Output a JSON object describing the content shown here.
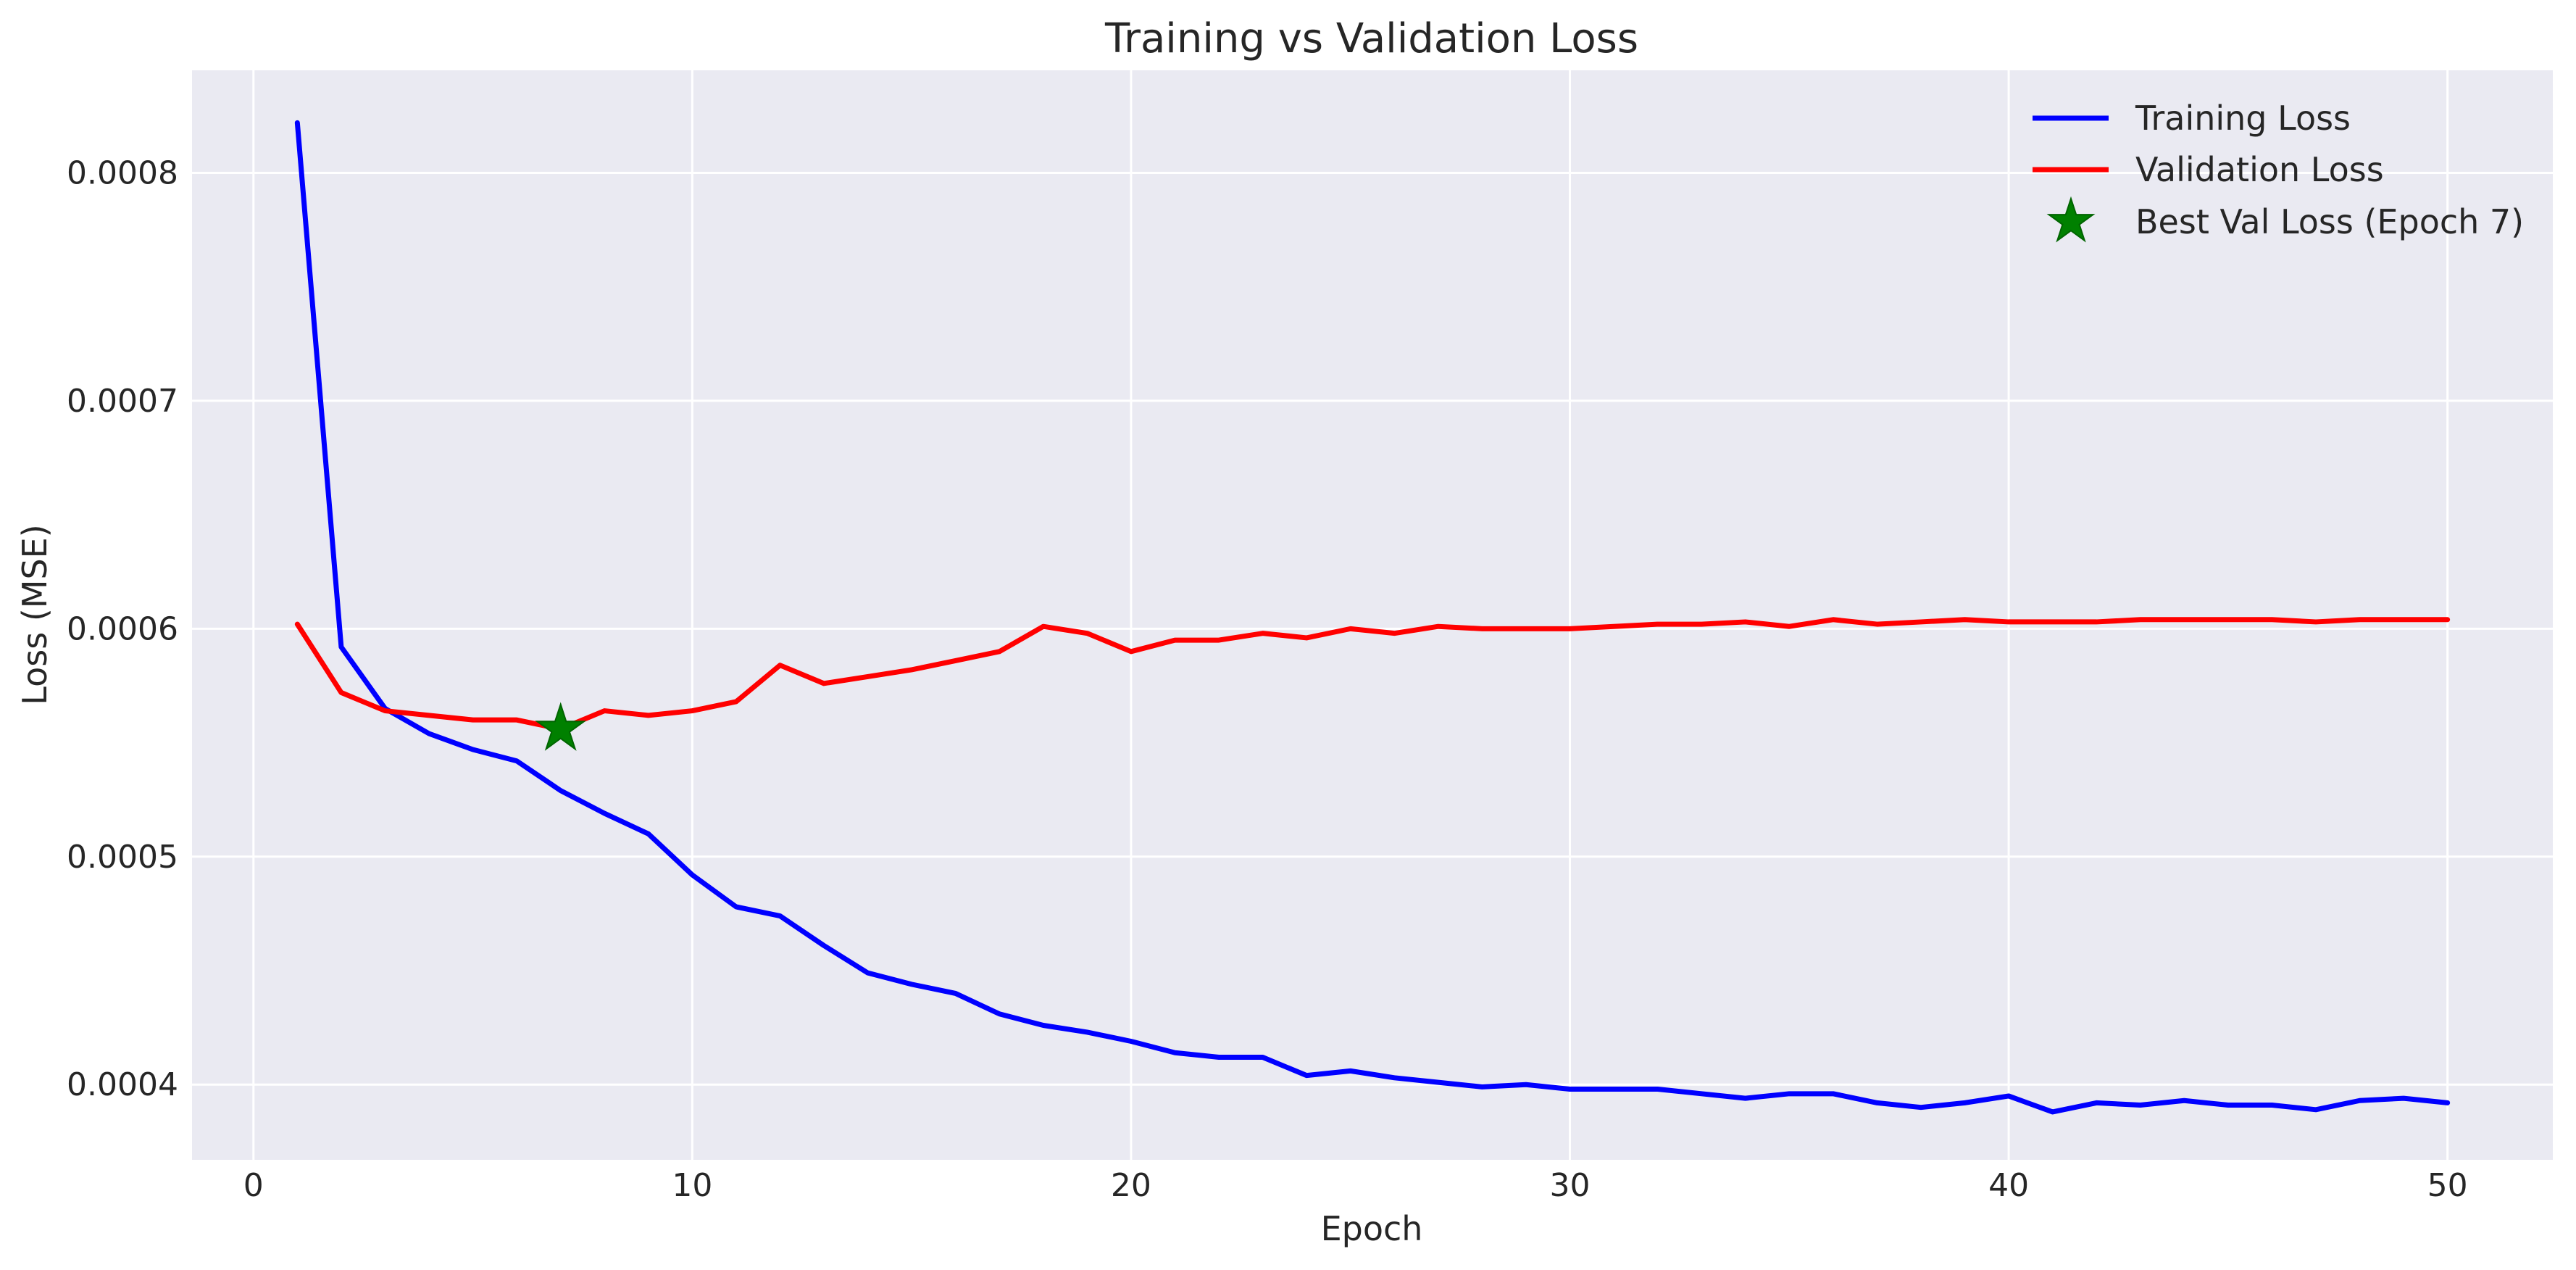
{
  "chart_data": {
    "type": "line",
    "title": "Training vs Validation Loss",
    "xlabel": "Epoch",
    "ylabel": "Loss (MSE)",
    "xlim": [
      -1.4,
      52.4
    ],
    "ylim": [
      0.000367,
      0.000845
    ],
    "xticks": [
      0,
      10,
      20,
      30,
      40,
      50
    ],
    "xtick_labels": [
      "0",
      "10",
      "20",
      "30",
      "40",
      "50"
    ],
    "yticks": [
      0.0004,
      0.0005,
      0.0006,
      0.0007,
      0.0008
    ],
    "ytick_labels": [
      "0.0004",
      "0.0005",
      "0.0006",
      "0.0007",
      "0.0008"
    ],
    "grid": true,
    "legend_position": "top-right",
    "x": [
      1,
      2,
      3,
      4,
      5,
      6,
      7,
      8,
      9,
      10,
      11,
      12,
      13,
      14,
      15,
      16,
      17,
      18,
      19,
      20,
      21,
      22,
      23,
      24,
      25,
      26,
      27,
      28,
      29,
      30,
      31,
      32,
      33,
      34,
      35,
      36,
      37,
      38,
      39,
      40,
      41,
      42,
      43,
      44,
      45,
      46,
      47,
      48,
      49,
      50
    ],
    "series": [
      {
        "name": "Training Loss",
        "color": "#0000ff",
        "values": [
          0.000822,
          0.000592,
          0.000565,
          0.000554,
          0.000547,
          0.000542,
          0.000529,
          0.000519,
          0.00051,
          0.000492,
          0.000478,
          0.000474,
          0.000461,
          0.000449,
          0.000444,
          0.00044,
          0.000431,
          0.000426,
          0.000423,
          0.000419,
          0.000414,
          0.000412,
          0.000412,
          0.000404,
          0.000406,
          0.000403,
          0.000401,
          0.000399,
          0.0004,
          0.000398,
          0.000398,
          0.000398,
          0.000396,
          0.000394,
          0.000396,
          0.000396,
          0.000392,
          0.00039,
          0.000392,
          0.000395,
          0.000388,
          0.000392,
          0.000391,
          0.000393,
          0.000391,
          0.000391,
          0.000389,
          0.000393,
          0.000394,
          0.000392
        ]
      },
      {
        "name": "Validation Loss",
        "color": "#ff0000",
        "values": [
          0.000602,
          0.000572,
          0.000564,
          0.000562,
          0.00056,
          0.00056,
          0.000556,
          0.000564,
          0.000562,
          0.000564,
          0.000568,
          0.000584,
          0.000576,
          0.000579,
          0.000582,
          0.000586,
          0.00059,
          0.000601,
          0.000598,
          0.00059,
          0.000595,
          0.000595,
          0.000598,
          0.000596,
          0.0006,
          0.000598,
          0.000601,
          0.0006,
          0.0006,
          0.0006,
          0.000601,
          0.000602,
          0.000602,
          0.000603,
          0.000601,
          0.000604,
          0.000602,
          0.000603,
          0.000604,
          0.000603,
          0.000603,
          0.000603,
          0.000604,
          0.000604,
          0.000604,
          0.000604,
          0.000603,
          0.000604,
          0.000604,
          0.000604
        ]
      }
    ],
    "best_point": {
      "name": "Best Val Loss (Epoch 7)",
      "epoch": 7,
      "value": 0.000556,
      "color": "#008000"
    },
    "colors": {
      "plot_background": "#eaeaf2",
      "grid": "#ffffff",
      "text": "#262626"
    }
  }
}
